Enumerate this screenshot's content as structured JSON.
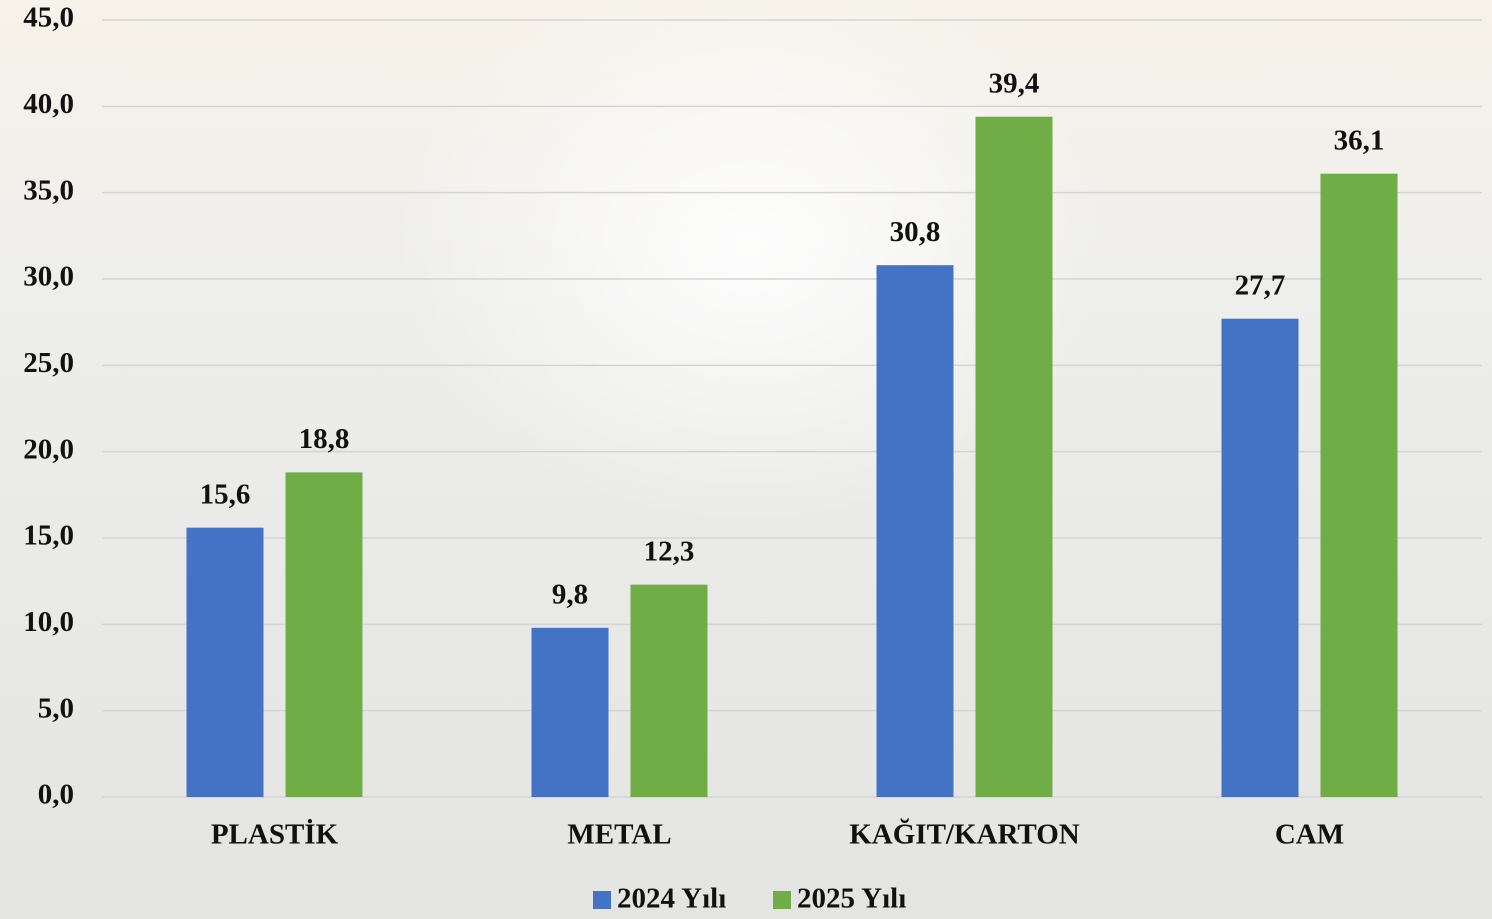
{
  "chart_data": {
    "type": "bar",
    "categories": [
      "PLASTİK",
      "METAL",
      "KAĞIT/KARTON",
      "CAM"
    ],
    "series": [
      {
        "name": "2024 Yılı",
        "color": "#4472c4",
        "values": [
          15.6,
          9.8,
          30.8,
          27.7
        ],
        "value_labels": [
          "15,6",
          "9,8",
          "30,8",
          "27,7"
        ]
      },
      {
        "name": "2025 Yılı",
        "color": "#70ad47",
        "values": [
          18.8,
          12.3,
          39.4,
          36.1
        ],
        "value_labels": [
          "18,8",
          "12,3",
          "39,4",
          "36,1"
        ]
      }
    ],
    "ylim": [
      0,
      45
    ],
    "yticks": [
      {
        "value": 0,
        "label": "0,0"
      },
      {
        "value": 5,
        "label": "5,0"
      },
      {
        "value": 10,
        "label": "10,0"
      },
      {
        "value": 15,
        "label": "15,0"
      },
      {
        "value": 20,
        "label": "20,0"
      },
      {
        "value": 25,
        "label": "25,0"
      },
      {
        "value": 30,
        "label": "30,0"
      },
      {
        "value": 35,
        "label": "35,0"
      },
      {
        "value": 40,
        "label": "40,0"
      },
      {
        "value": 45,
        "label": "45,0"
      }
    ],
    "grid": true,
    "legend": "bottom"
  }
}
